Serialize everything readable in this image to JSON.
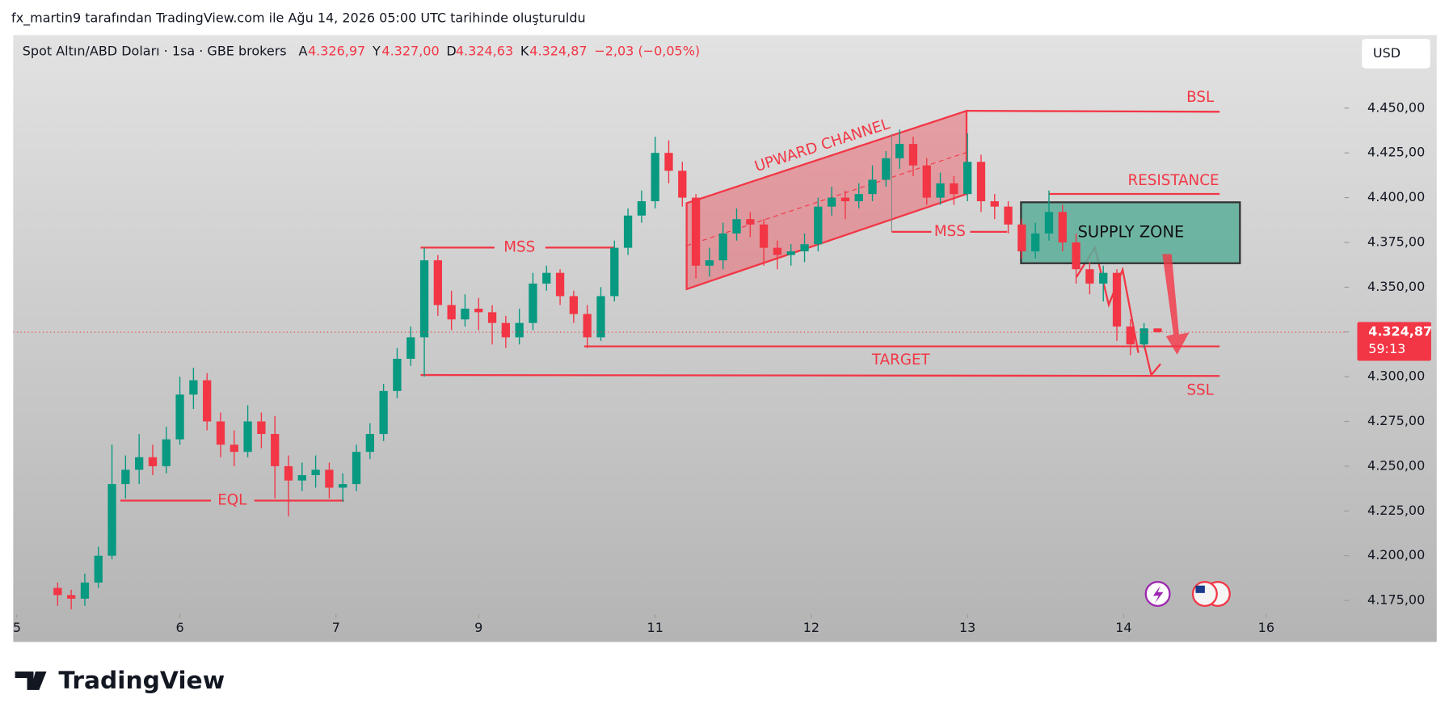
{
  "page_title": "fx_martin9 tarafından TradingView.com ile Ağu 14, 2026 05:00 UTC tarihinde oluşturuldu",
  "brand": "TradingView",
  "chart_data": {
    "type": "candlestick",
    "symbol": "Spot Altın/ABD Doları · 1sa · GBE brokers",
    "ohlc_legend": [
      {
        "key": "A",
        "value": "4.326,97"
      },
      {
        "key": "Y",
        "value": "4.327,00"
      },
      {
        "key": "D",
        "value": "4.324,63"
      },
      {
        "key": "K",
        "value": "4.324,87"
      }
    ],
    "change": "−2,03 (−0,05%)",
    "currency": "USD",
    "last_price_label": "4.324,87",
    "countdown": "59:13",
    "up_color": "#089981",
    "down_color": "#f23645",
    "xlim": [
      -0.544,
      195.5
    ],
    "ylim": [
      4167.3,
      4490.8
    ],
    "xticks": [
      {
        "value": 0,
        "label": "5"
      },
      {
        "value": 24,
        "label": "6"
      },
      {
        "value": 47,
        "label": "7"
      },
      {
        "value": 68,
        "label": "9"
      },
      {
        "value": 94,
        "label": "11"
      },
      {
        "value": 117,
        "label": "12"
      },
      {
        "value": 140,
        "label": "13"
      },
      {
        "value": 163,
        "label": "14"
      },
      {
        "value": 184,
        "label": "16"
      }
    ],
    "yticks": [
      {
        "value": 4175,
        "label": "4.175,00"
      },
      {
        "value": 4200,
        "label": "4.200,00"
      },
      {
        "value": 4225,
        "label": "4.225,00"
      },
      {
        "value": 4250,
        "label": "4.250,00"
      },
      {
        "value": 4275,
        "label": "4.275,00"
      },
      {
        "value": 4300,
        "label": "4.300,00"
      },
      {
        "value": 4325,
        "label": "4.325,00"
      },
      {
        "value": 4350,
        "label": "4.350,00"
      },
      {
        "value": 4375,
        "label": "4.375,00"
      },
      {
        "value": 4400,
        "label": "4.400,00"
      },
      {
        "value": 4425,
        "label": "4.425,00"
      },
      {
        "value": 4450,
        "label": "4.450,00"
      }
    ],
    "annotations": {
      "bsl": "BSL",
      "resistance": "RESISTANCE",
      "supply": "SUPPLY ZONE",
      "channel": "UPWARD CHANNEL",
      "mss1": "MSS",
      "mss2": "MSS",
      "target": "TARGET",
      "ssl": "SSL",
      "eql": "EQL"
    },
    "candles": [
      {
        "x": 6,
        "open": 4182,
        "high": 4185,
        "low": 4172,
        "close": 4178
      },
      {
        "x": 8,
        "open": 4178,
        "high": 4181,
        "low": 4170,
        "close": 4176
      },
      {
        "x": 10,
        "open": 4176,
        "high": 4190,
        "low": 4172,
        "close": 4185
      },
      {
        "x": 12,
        "open": 4185,
        "high": 4205,
        "low": 4182,
        "close": 4200
      },
      {
        "x": 14,
        "open": 4200,
        "high": 4262,
        "low": 4198,
        "close": 4240
      },
      {
        "x": 16,
        "open": 4240,
        "high": 4256,
        "low": 4232,
        "close": 4248
      },
      {
        "x": 18,
        "open": 4248,
        "high": 4268,
        "low": 4240,
        "close": 4255
      },
      {
        "x": 20,
        "open": 4255,
        "high": 4262,
        "low": 4245,
        "close": 4250
      },
      {
        "x": 22,
        "open": 4250,
        "high": 4272,
        "low": 4246,
        "close": 4265
      },
      {
        "x": 24,
        "open": 4265,
        "high": 4300,
        "low": 4262,
        "close": 4290
      },
      {
        "x": 26,
        "open": 4290,
        "high": 4305,
        "low": 4282,
        "close": 4298
      },
      {
        "x": 28,
        "open": 4298,
        "high": 4302,
        "low": 4270,
        "close": 4275
      },
      {
        "x": 30,
        "open": 4275,
        "high": 4280,
        "low": 4255,
        "close": 4262
      },
      {
        "x": 32,
        "open": 4262,
        "high": 4270,
        "low": 4250,
        "close": 4258
      },
      {
        "x": 34,
        "open": 4258,
        "high": 4284,
        "low": 4255,
        "close": 4275
      },
      {
        "x": 36,
        "open": 4275,
        "high": 4280,
        "low": 4260,
        "close": 4268
      },
      {
        "x": 38,
        "open": 4268,
        "high": 4278,
        "low": 4232,
        "close": 4250
      },
      {
        "x": 40,
        "open": 4250,
        "high": 4256,
        "low": 4222,
        "close": 4242
      },
      {
        "x": 42,
        "open": 4242,
        "high": 4252,
        "low": 4236,
        "close": 4245
      },
      {
        "x": 44,
        "open": 4245,
        "high": 4256,
        "low": 4238,
        "close": 4248
      },
      {
        "x": 46,
        "open": 4248,
        "high": 4252,
        "low": 4232,
        "close": 4238
      },
      {
        "x": 48,
        "open": 4238,
        "high": 4246,
        "low": 4230,
        "close": 4240
      },
      {
        "x": 50,
        "open": 4240,
        "high": 4262,
        "low": 4236,
        "close": 4258
      },
      {
        "x": 52,
        "open": 4258,
        "high": 4274,
        "low": 4254,
        "close": 4268
      },
      {
        "x": 54,
        "open": 4268,
        "high": 4296,
        "low": 4264,
        "close": 4292
      },
      {
        "x": 56,
        "open": 4292,
        "high": 4316,
        "low": 4288,
        "close": 4310
      },
      {
        "x": 58,
        "open": 4310,
        "high": 4328,
        "low": 4306,
        "close": 4322
      },
      {
        "x": 60,
        "open": 4322,
        "high": 4372,
        "low": 4300,
        "close": 4365
      },
      {
        "x": 62,
        "open": 4365,
        "high": 4368,
        "low": 4334,
        "close": 4340
      },
      {
        "x": 64,
        "open": 4340,
        "high": 4348,
        "low": 4326,
        "close": 4332
      },
      {
        "x": 66,
        "open": 4332,
        "high": 4346,
        "low": 4328,
        "close": 4338
      },
      {
        "x": 68,
        "open": 4338,
        "high": 4344,
        "low": 4326,
        "close": 4336
      },
      {
        "x": 70,
        "open": 4336,
        "high": 4340,
        "low": 4318,
        "close": 4330
      },
      {
        "x": 72,
        "open": 4330,
        "high": 4334,
        "low": 4316,
        "close": 4322
      },
      {
        "x": 74,
        "open": 4322,
        "high": 4338,
        "low": 4318,
        "close": 4330
      },
      {
        "x": 76,
        "open": 4330,
        "high": 4358,
        "low": 4326,
        "close": 4352
      },
      {
        "x": 78,
        "open": 4352,
        "high": 4362,
        "low": 4348,
        "close": 4358
      },
      {
        "x": 80,
        "open": 4358,
        "high": 4360,
        "low": 4340,
        "close": 4345
      },
      {
        "x": 82,
        "open": 4345,
        "high": 4348,
        "low": 4330,
        "close": 4335
      },
      {
        "x": 84,
        "open": 4335,
        "high": 4340,
        "low": 4316,
        "close": 4322
      },
      {
        "x": 86,
        "open": 4322,
        "high": 4350,
        "low": 4320,
        "close": 4345
      },
      {
        "x": 88,
        "open": 4345,
        "high": 4376,
        "low": 4342,
        "close": 4372
      },
      {
        "x": 90,
        "open": 4372,
        "high": 4394,
        "low": 4368,
        "close": 4390
      },
      {
        "x": 92,
        "open": 4390,
        "high": 4404,
        "low": 4386,
        "close": 4398
      },
      {
        "x": 94,
        "open": 4398,
        "high": 4434,
        "low": 4394,
        "close": 4425
      },
      {
        "x": 96,
        "open": 4425,
        "high": 4432,
        "low": 4408,
        "close": 4415
      },
      {
        "x": 98,
        "open": 4415,
        "high": 4420,
        "low": 4395,
        "close": 4400
      },
      {
        "x": 100,
        "open": 4400,
        "high": 4402,
        "low": 4355,
        "close": 4362
      },
      {
        "x": 102,
        "open": 4362,
        "high": 4372,
        "low": 4356,
        "close": 4365
      },
      {
        "x": 104,
        "open": 4365,
        "high": 4386,
        "low": 4360,
        "close": 4380
      },
      {
        "x": 106,
        "open": 4380,
        "high": 4394,
        "low": 4376,
        "close": 4388
      },
      {
        "x": 108,
        "open": 4388,
        "high": 4392,
        "low": 4378,
        "close": 4385
      },
      {
        "x": 110,
        "open": 4385,
        "high": 4388,
        "low": 4362,
        "close": 4372
      },
      {
        "x": 112,
        "open": 4372,
        "high": 4376,
        "low": 4360,
        "close": 4368
      },
      {
        "x": 114,
        "open": 4368,
        "high": 4374,
        "low": 4362,
        "close": 4370
      },
      {
        "x": 116,
        "open": 4370,
        "high": 4380,
        "low": 4364,
        "close": 4374
      },
      {
        "x": 118,
        "open": 4374,
        "high": 4400,
        "low": 4370,
        "close": 4395
      },
      {
        "x": 120,
        "open": 4395,
        "high": 4406,
        "low": 4390,
        "close": 4400
      },
      {
        "x": 122,
        "open": 4400,
        "high": 4404,
        "low": 4388,
        "close": 4398
      },
      {
        "x": 124,
        "open": 4398,
        "high": 4408,
        "low": 4394,
        "close": 4402
      },
      {
        "x": 126,
        "open": 4402,
        "high": 4418,
        "low": 4398,
        "close": 4410
      },
      {
        "x": 128,
        "open": 4410,
        "high": 4426,
        "low": 4406,
        "close": 4422
      },
      {
        "x": 130,
        "open": 4422,
        "high": 4438,
        "low": 4416,
        "close": 4430
      },
      {
        "x": 132,
        "open": 4430,
        "high": 4434,
        "low": 4412,
        "close": 4418
      },
      {
        "x": 134,
        "open": 4418,
        "high": 4422,
        "low": 4396,
        "close": 4400
      },
      {
        "x": 136,
        "open": 4400,
        "high": 4414,
        "low": 4396,
        "close": 4408
      },
      {
        "x": 138,
        "open": 4408,
        "high": 4412,
        "low": 4396,
        "close": 4402
      },
      {
        "x": 140,
        "open": 4402,
        "high": 4436,
        "low": 4398,
        "close": 4420
      },
      {
        "x": 142,
        "open": 4420,
        "high": 4424,
        "low": 4392,
        "close": 4398
      },
      {
        "x": 144,
        "open": 4398,
        "high": 4402,
        "low": 4388,
        "close": 4395
      },
      {
        "x": 146,
        "open": 4395,
        "high": 4398,
        "low": 4380,
        "close": 4385
      },
      {
        "x": 148,
        "open": 4385,
        "high": 4388,
        "low": 4366,
        "close": 4370
      },
      {
        "x": 150,
        "open": 4370,
        "high": 4386,
        "low": 4366,
        "close": 4380
      },
      {
        "x": 152,
        "open": 4380,
        "high": 4404,
        "low": 4376,
        "close": 4392
      },
      {
        "x": 154,
        "open": 4392,
        "high": 4396,
        "low": 4370,
        "close": 4375
      },
      {
        "x": 156,
        "open": 4375,
        "high": 4380,
        "low": 4352,
        "close": 4360
      },
      {
        "x": 158,
        "open": 4360,
        "high": 4364,
        "low": 4346,
        "close": 4352
      },
      {
        "x": 160,
        "open": 4352,
        "high": 4362,
        "low": 4342,
        "close": 4358
      },
      {
        "x": 162,
        "open": 4358,
        "high": 4360,
        "low": 4320,
        "close": 4328
      },
      {
        "x": 164,
        "open": 4328,
        "high": 4332,
        "low": 4312,
        "close": 4318
      },
      {
        "x": 166,
        "open": 4318,
        "high": 4330,
        "low": 4316,
        "close": 4327
      },
      {
        "x": 168,
        "open": 4326.97,
        "high": 4327,
        "low": 4324.63,
        "close": 4324.87
      }
    ]
  }
}
